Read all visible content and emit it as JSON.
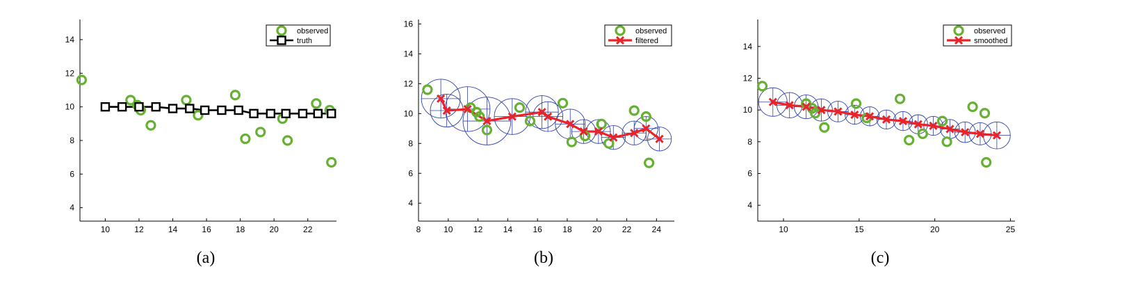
{
  "chart_data": [
    {
      "type": "scatter",
      "caption": "(a)",
      "xlim": [
        8.5,
        23.7
      ],
      "ylim": [
        3.2,
        15.2
      ],
      "xticks": [
        10,
        12,
        14,
        16,
        18,
        20,
        22
      ],
      "yticks": [
        4,
        6,
        8,
        10,
        12,
        14
      ],
      "legend": {
        "position": "top-right",
        "entries": [
          "observed",
          "truth"
        ]
      },
      "series": [
        {
          "name": "observed",
          "style": "green-circle",
          "x": [
            8.6,
            11.5,
            11.9,
            12.1,
            12.7,
            14.8,
            15.5,
            17.7,
            18.3,
            19.2,
            20.5,
            20.8,
            22.5,
            23.3
          ],
          "y": [
            11.6,
            10.4,
            10.1,
            9.8,
            8.9,
            10.4,
            9.5,
            10.7,
            8.1,
            8.5,
            9.3,
            8.0,
            10.2,
            9.8
          ]
        },
        {
          "name": "observed",
          "style": "green-circle",
          "x": [
            23.4
          ],
          "y": [
            6.7
          ]
        },
        {
          "name": "truth",
          "style": "black-square-line",
          "x": [
            10.0,
            11.0,
            12.0,
            13.0,
            14.0,
            15.0,
            15.9,
            16.9,
            17.9,
            18.8,
            19.8,
            20.7,
            21.7,
            22.6,
            23.4
          ],
          "y": [
            10.0,
            10.0,
            10.0,
            10.0,
            9.9,
            9.9,
            9.8,
            9.8,
            9.8,
            9.6,
            9.6,
            9.6,
            9.6,
            9.6,
            9.6
          ]
        }
      ],
      "colors": {
        "observed": "#66b032",
        "truth": "#000000"
      }
    },
    {
      "type": "scatter",
      "caption": "(b)",
      "xlim": [
        8,
        25.2
      ],
      "ylim": [
        2.8,
        16.3
      ],
      "xticks": [
        8,
        10,
        12,
        14,
        16,
        18,
        20,
        22,
        24
      ],
      "yticks": [
        4,
        6,
        8,
        10,
        12,
        14,
        16
      ],
      "legend": {
        "position": "top-right",
        "entries": [
          "observed",
          "filtered"
        ]
      },
      "series": [
        {
          "name": "observed",
          "style": "green-circle",
          "x": [
            8.6,
            11.5,
            11.9,
            12.1,
            12.6,
            14.8,
            15.5,
            17.7,
            18.3,
            19.2,
            20.3,
            20.8,
            22.5,
            23.3,
            23.5
          ],
          "y": [
            11.6,
            10.4,
            10.1,
            9.8,
            8.9,
            10.4,
            9.5,
            10.7,
            8.1,
            8.5,
            9.3,
            8.0,
            10.2,
            9.8,
            6.7
          ]
        },
        {
          "name": "filtered",
          "style": "red-x-line",
          "x": [
            9.5,
            9.9,
            11.3,
            12.6,
            14.3,
            16.3,
            16.7,
            18.2,
            19.1,
            20.1,
            21.1,
            22.5,
            23.3,
            24.2
          ],
          "y": [
            11.0,
            10.2,
            10.3,
            9.5,
            9.8,
            10.1,
            9.8,
            9.3,
            8.8,
            8.8,
            8.4,
            8.7,
            9.0,
            8.3
          ],
          "uncertainty_radius": [
            1.3,
            1.1,
            1.5,
            1.6,
            1.2,
            1.1,
            1.0,
            1.0,
            0.8,
            0.8,
            0.8,
            0.8,
            0.8,
            0.8
          ]
        }
      ],
      "colors": {
        "observed": "#66b032",
        "filtered": "#e8242a",
        "uncertainty": "#3040a8"
      }
    },
    {
      "type": "scatter",
      "caption": "(c)",
      "xlim": [
        8.3,
        25.3
      ],
      "ylim": [
        3,
        15.7
      ],
      "xticks": [
        10,
        15,
        20,
        25
      ],
      "yticks": [
        4,
        6,
        8,
        10,
        12,
        14
      ],
      "legend": {
        "position": "top-right",
        "entries": [
          "observed",
          "smoothed"
        ]
      },
      "series": [
        {
          "name": "observed",
          "style": "green-circle",
          "x": [
            8.6,
            11.5,
            11.9,
            12.1,
            12.7,
            14.8,
            15.5,
            17.7,
            18.3,
            19.2,
            20.5,
            20.8,
            22.5,
            23.3,
            23.4
          ],
          "y": [
            11.5,
            10.4,
            10.1,
            9.8,
            8.9,
            10.4,
            9.5,
            10.7,
            8.1,
            8.5,
            9.3,
            8.0,
            10.2,
            9.8,
            6.7
          ]
        },
        {
          "name": "smoothed",
          "style": "red-x-line",
          "x": [
            9.3,
            10.4,
            11.5,
            12.5,
            13.6,
            14.7,
            15.7,
            16.8,
            17.9,
            18.9,
            19.9,
            21.0,
            22.0,
            23.0,
            24.1
          ],
          "y": [
            10.5,
            10.3,
            10.2,
            10.0,
            9.9,
            9.7,
            9.6,
            9.4,
            9.3,
            9.1,
            9.0,
            8.8,
            8.6,
            8.5,
            8.4
          ],
          "uncertainty_radius": [
            0.9,
            0.8,
            0.75,
            0.7,
            0.65,
            0.6,
            0.6,
            0.6,
            0.6,
            0.6,
            0.6,
            0.6,
            0.65,
            0.7,
            0.85
          ]
        }
      ],
      "colors": {
        "observed": "#66b032",
        "smoothed": "#e8242a",
        "uncertainty": "#3040a8"
      }
    }
  ]
}
